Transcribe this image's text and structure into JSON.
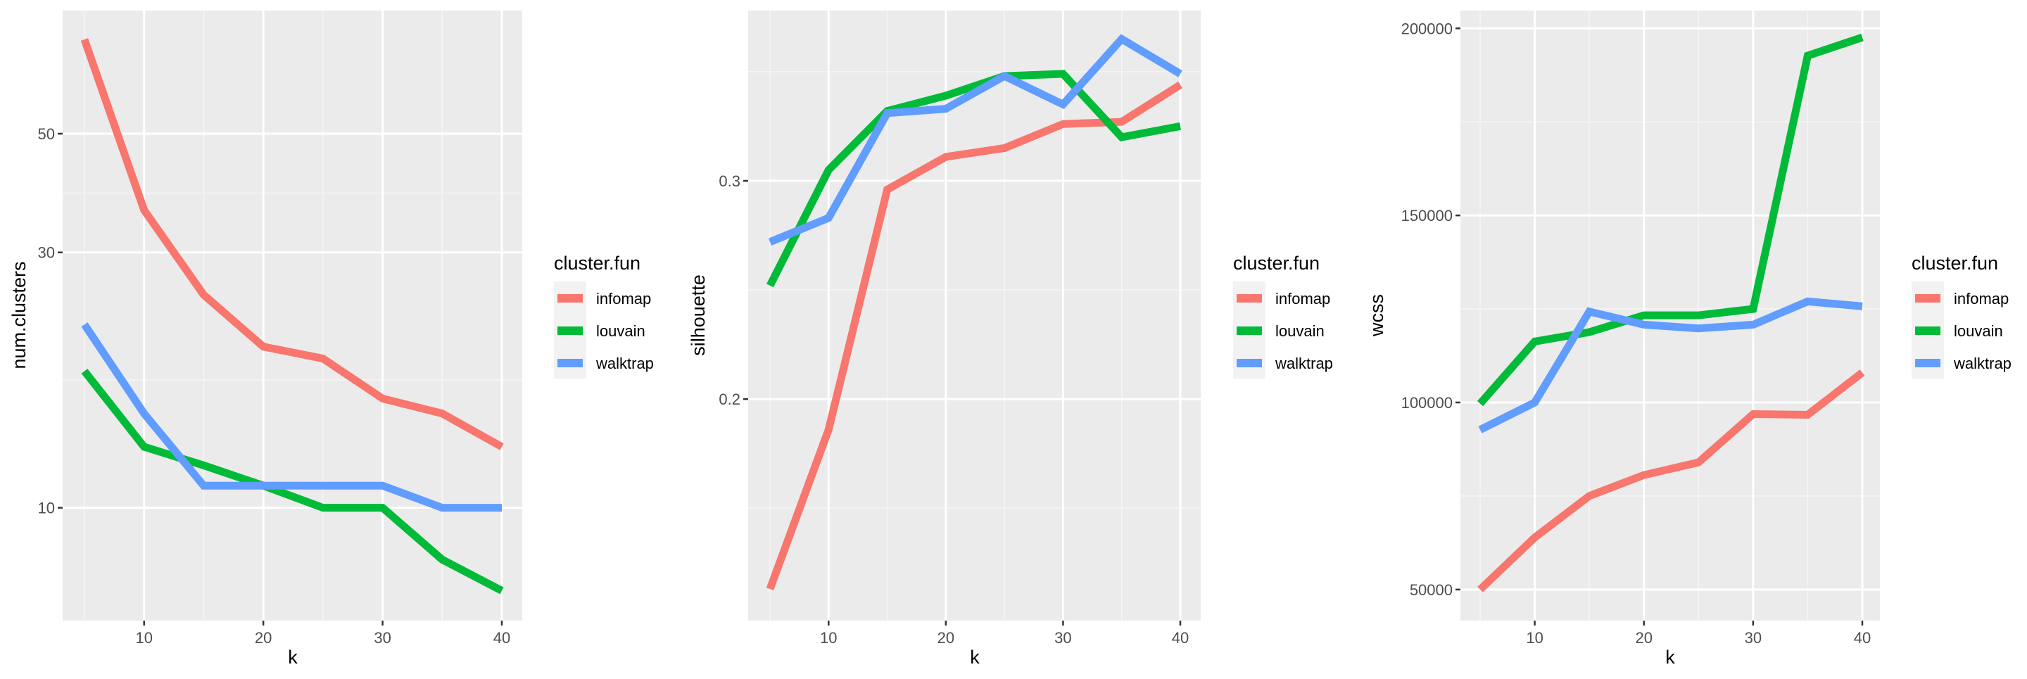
{
  "colors": {
    "panel_bg": "#ebebeb",
    "grid_major": "#ffffff",
    "grid_minor": "#f5f5f5",
    "infomap": "#f8766d",
    "louvain": "#00ba38",
    "walktrap": "#619cff",
    "legend_key_bg": "#f2f2f2"
  },
  "legend": {
    "title": "cluster.fun",
    "items": [
      {
        "label": "infomap",
        "color": "#f8766d"
      },
      {
        "label": "louvain",
        "color": "#00ba38"
      },
      {
        "label": "walktrap",
        "color": "#619cff"
      }
    ]
  },
  "chart_data": [
    {
      "type": "line",
      "title": "",
      "xlabel": "k",
      "ylabel": "num.clusters",
      "yscale": "log10",
      "x": [
        5,
        10,
        15,
        20,
        25,
        30,
        35,
        40
      ],
      "xticks": [
        10,
        20,
        30,
        40
      ],
      "yticks": [
        10,
        30,
        50
      ],
      "ytick_labels": [
        "10",
        "30",
        "50"
      ],
      "grid": true,
      "legend_position": "right",
      "series": [
        {
          "name": "infomap",
          "values": [
            75,
            36,
            25,
            20,
            19,
            16,
            15,
            13
          ]
        },
        {
          "name": "louvain",
          "values": [
            18,
            13,
            12,
            11,
            10,
            10,
            8,
            7
          ]
        },
        {
          "name": "walktrap",
          "values": [
            22,
            15,
            11,
            11,
            11,
            11,
            10,
            10
          ]
        }
      ]
    },
    {
      "type": "line",
      "title": "",
      "xlabel": "k",
      "ylabel": "silhouette",
      "yscale": "linear",
      "x": [
        5,
        10,
        15,
        20,
        25,
        30,
        35,
        40
      ],
      "xticks": [
        10,
        20,
        30,
        40
      ],
      "yticks": [
        0.2,
        0.3
      ],
      "ytick_labels": [
        "0.2",
        "0.3"
      ],
      "ylim": [
        0.105,
        0.375
      ],
      "grid": true,
      "legend_position": "right",
      "series": [
        {
          "name": "infomap",
          "values": [
            0.113,
            0.186,
            0.296,
            0.311,
            0.315,
            0.326,
            0.327,
            0.344
          ]
        },
        {
          "name": "louvain",
          "values": [
            0.252,
            0.305,
            0.332,
            0.339,
            0.348,
            0.349,
            0.32,
            0.325
          ]
        },
        {
          "name": "walktrap",
          "values": [
            0.272,
            0.283,
            0.331,
            0.333,
            0.348,
            0.335,
            0.365,
            0.349
          ]
        }
      ]
    },
    {
      "type": "line",
      "title": "",
      "xlabel": "k",
      "ylabel": "wcss",
      "yscale": "linear",
      "x": [
        5,
        10,
        15,
        20,
        25,
        30,
        35,
        40
      ],
      "xticks": [
        10,
        20,
        30,
        40
      ],
      "yticks": [
        50000,
        100000,
        150000,
        200000
      ],
      "ytick_labels": [
        "50000",
        "100000",
        "150000",
        "200000"
      ],
      "ylim": [
        42000,
        205000
      ],
      "grid": true,
      "legend_position": "right",
      "series": [
        {
          "name": "infomap",
          "values": [
            50000,
            63900,
            75000,
            80600,
            84000,
            96900,
            96700,
            108000
          ]
        },
        {
          "name": "louvain",
          "values": [
            99700,
            116300,
            118800,
            123300,
            123300,
            125000,
            192700,
            197600
          ]
        },
        {
          "name": "walktrap",
          "values": [
            92700,
            100000,
            124300,
            120800,
            119800,
            120800,
            127000,
            125700
          ]
        }
      ]
    }
  ]
}
